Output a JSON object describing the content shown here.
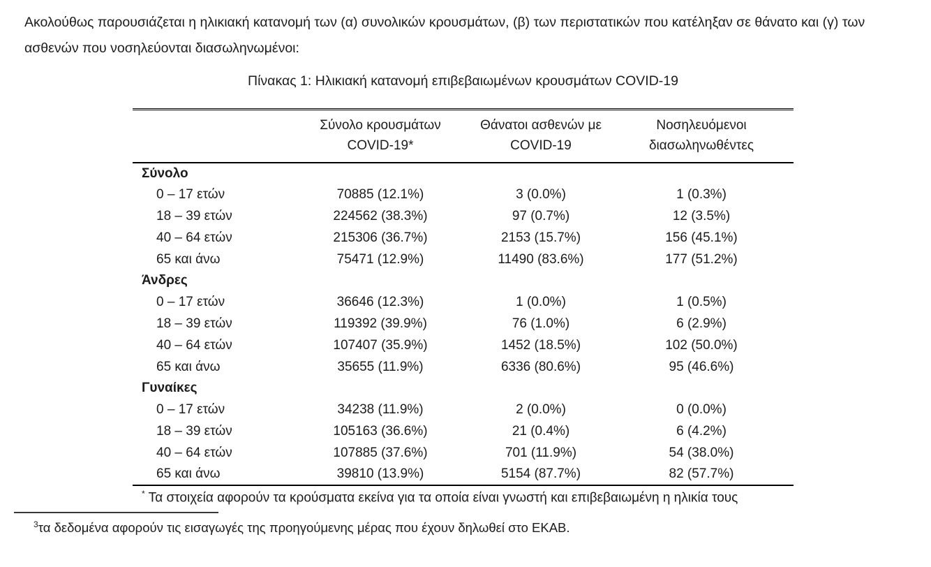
{
  "intro": {
    "line1": "Ακολούθως παρουσιάζεται η ηλικιακή κατανομή των (α) συνολικών κρουσμάτων, (β) των περιστατικών που κατέληξαν σε θάνατο και (γ) των",
    "line2": "ασθενών που νοσηλεύονται διασωληνωμένοι:"
  },
  "table": {
    "title": "Πίνακας 1: Ηλικιακή κατανομή επιβεβαιωμένων κρουσμάτων COVID-19",
    "columns": [
      {
        "line1": "Σύνολο κρουσμάτων",
        "line2": "COVID-19*"
      },
      {
        "line1": "Θάνατοι ασθενών με",
        "line2": "COVID-19"
      },
      {
        "line1": "Νοσηλευόμενοι",
        "line2": "διασωληνωθέντες"
      }
    ],
    "sections": [
      {
        "header": "Σύνολο",
        "rows": [
          {
            "label": "0 – 17 ετών",
            "cases": "70885 (12.1%)",
            "deaths": "3 (0.0%)",
            "intubated": "1 (0.3%)"
          },
          {
            "label": "18 – 39 ετών",
            "cases": "224562 (38.3%)",
            "deaths": "97 (0.7%)",
            "intubated": "12 (3.5%)"
          },
          {
            "label": "40 – 64 ετών",
            "cases": "215306 (36.7%)",
            "deaths": "2153 (15.7%)",
            "intubated": "156 (45.1%)"
          },
          {
            "label": "65 και άνω",
            "cases": "75471 (12.9%)",
            "deaths": "11490 (83.6%)",
            "intubated": "177 (51.2%)"
          }
        ]
      },
      {
        "header": "Άνδρες",
        "rows": [
          {
            "label": "0 – 17 ετών",
            "cases": "36646 (12.3%)",
            "deaths": "1 (0.0%)",
            "intubated": "1 (0.5%)"
          },
          {
            "label": "18 – 39 ετών",
            "cases": "119392 (39.9%)",
            "deaths": "76 (1.0%)",
            "intubated": "6 (2.9%)"
          },
          {
            "label": "40 – 64 ετών",
            "cases": "107407 (35.9%)",
            "deaths": "1452 (18.5%)",
            "intubated": "102 (50.0%)"
          },
          {
            "label": "65 και άνω",
            "cases": "35655 (11.9%)",
            "deaths": "6336 (80.6%)",
            "intubated": "95 (46.6%)"
          }
        ]
      },
      {
        "header": "Γυναίκες",
        "rows": [
          {
            "label": "0 – 17 ετών",
            "cases": "34238 (11.9%)",
            "deaths": "2 (0.0%)",
            "intubated": "0 (0.0%)"
          },
          {
            "label": "18 – 39 ετών",
            "cases": "105163 (36.6%)",
            "deaths": "21 (0.4%)",
            "intubated": "6 (4.2%)"
          },
          {
            "label": "40 – 64 ετών",
            "cases": "107885 (37.6%)",
            "deaths": "701 (11.9%)",
            "intubated": "54 (38.0%)"
          },
          {
            "label": "65 και άνω",
            "cases": "39810 (13.9%)",
            "deaths": "5154 (87.7%)",
            "intubated": "82 (57.7%)"
          }
        ]
      }
    ],
    "footnote_marker": "*",
    "footnote_text": "Τα στοιχεία αφορούν τα κρούσματα εκείνα για τα οποία είναι γνωστή και επιβεβαιωμένη η ηλικία τους"
  },
  "page_footnote": {
    "marker": "3",
    "text": "τα δεδομένα αφορούν τις εισαγωγές της προηγούμενης μέρας που έχουν δηλωθεί στο ΕΚΑΒ."
  },
  "colors": {
    "text": "#1c1c1c",
    "rule": "#000000",
    "background": "#ffffff"
  }
}
